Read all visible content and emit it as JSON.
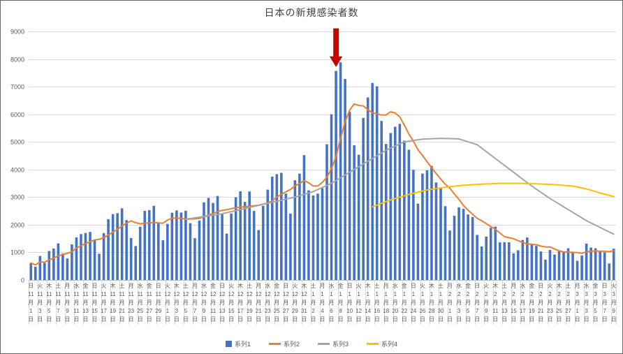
{
  "window": {
    "background": "#FFFFFF",
    "border_color": "#666666"
  },
  "chart_data": {
    "type": "combo-bar-line",
    "title": "日本の新規感染者数",
    "ylabel": "",
    "xlabel": "",
    "ylim": [
      0,
      9000
    ],
    "ytick_interval": 1000,
    "n_points": 129,
    "x_unit": "day",
    "x_tick_every": 2,
    "grid": true,
    "legend_position": "bottom",
    "axis_text_color": "#595959",
    "grid_color": "#D9D9D9",
    "axis_line_color": "#BFBFBF",
    "x_ticks": [
      "日 11月1日",
      "火 11月3日",
      "木 11月5日",
      "土 11月7日",
      "月 11月9日",
      "水 11月11日",
      "金 11月13日",
      "日 11月15日",
      "火 11月17日",
      "木 11月19日",
      "土 11月21日",
      "月 11月23日",
      "水 11月25日",
      "金 11月27日",
      "日 11月29日",
      "火 12月1日",
      "木 12月3日",
      "土 12月5日",
      "月 12月7日",
      "水 12月9日",
      "金 12月11日",
      "日 12月13日",
      "火 12月15日",
      "木 12月17日",
      "土 12月19日",
      "月 12月21日",
      "水 12月23日",
      "金 12月25日",
      "日 12月27日",
      "火 12月29日",
      "木 12月31日",
      "土 1月2日",
      "月 1月4日",
      "水 1月6日",
      "金 1月8日",
      "日 1月10日",
      "火 1月12日",
      "木 1月14日",
      "土 1月16日",
      "月 1月18日",
      "水 1月20日",
      "金 1月22日",
      "日 1月24日",
      "火 1月26日",
      "木 1月28日",
      "土 1月30日",
      "月 2月1日",
      "水 2月3日",
      "金 2月5日",
      "日 2月7日",
      "火 2月9日",
      "木 2月11日",
      "土 2月13日",
      "月 2月15日",
      "水 2月17日",
      "金 2月19日",
      "日 2月21日",
      "火 2月23日",
      "木 2月25日",
      "土 2月27日",
      "月 3月1日",
      "水 3月3日",
      "金 3月5日",
      "日 3月7日",
      "火 3月9日"
    ],
    "series": [
      {
        "name": "系列1",
        "type": "bar",
        "color": "#4472C4",
        "values": [
          614,
          482,
          867,
          620,
          1050,
          1141,
          1325,
          957,
          780,
          1287,
          1543,
          1661,
          1704,
          1738,
          1441,
          950,
          1699,
          2201,
          2386,
          2418,
          2596,
          2168,
          1520,
          1229,
          1930,
          2504,
          2531,
          2684,
          2066,
          1438,
          2030,
          2434,
          2518,
          2442,
          2508,
          2058,
          1515,
          2152,
          2810,
          2971,
          2790,
          3041,
          2387,
          1680,
          2410,
          2994,
          3211,
          2829,
          3205,
          2501,
          1806,
          2686,
          3271,
          3742,
          3832,
          3881,
          3127,
          2402,
          3610,
          3852,
          4520,
          3246,
          3059,
          3128,
          3325,
          4915,
          6001,
          7570,
          7882,
          7278,
          6093,
          4876,
          4534,
          5870,
          6610,
          7133,
          7014,
          5759,
          4925,
          5320,
          5549,
          5653,
          5045,
          4717,
          3989,
          2764,
          3853,
          3971,
          4133,
          3534,
          3344,
          2673,
          1792,
          2324,
          2631,
          2576,
          2372,
          2279,
          1632,
          1216,
          1570,
          1887,
          1933,
          1362,
          1371,
          1364,
          965,
          1076,
          1448,
          1538,
          1304,
          1234,
          1032,
          739,
          1087,
          922,
          1076,
          1029,
          1148,
          999,
          697,
          888,
          1316,
          1174,
          1149,
          1049,
          1001,
          599,
          1133
        ]
      },
      {
        "name": "系列2",
        "type": "line",
        "color": "#ED7D31",
        "width": 2,
        "values": [
          614,
          548,
          654,
          646,
          727,
          796,
          871,
          920,
          963,
          1023,
          1155,
          1242,
          1322,
          1381,
          1451,
          1475,
          1534,
          1628,
          1731,
          1833,
          1956,
          2060,
          2141,
          2074,
          2035,
          2052,
          2068,
          2081,
          2066,
          2055,
          2169,
          2241,
          2243,
          2230,
          2205,
          2204,
          2215,
          2232,
          2286,
          2351,
          2401,
          2477,
          2524,
          2547,
          2584,
          2610,
          2645,
          2650,
          2674,
          2690,
          2708,
          2747,
          2787,
          2863,
          3006,
          3103,
          3192,
          3277,
          3409,
          3492,
          3603,
          3520,
          3402,
          3402,
          3534,
          3721,
          4028,
          4463,
          5126,
          5728,
          6152,
          6374,
          6319,
          6300,
          6163,
          6056,
          6019,
          5971,
          5978,
          6090,
          6044,
          5908,
          5609,
          5281,
          5028,
          4720,
          4510,
          4285,
          4067,
          3852,
          3655,
          3467,
          3329,
          3110,
          2919,
          2696,
          2530,
          2378,
          2229,
          2147,
          2039,
          1933,
          1841,
          1697,
          1567,
          1529,
          1493,
          1423,
          1360,
          1303,
          1295,
          1276,
          1228,
          1196,
          1197,
          1122,
          1056,
          1017,
          1005,
          1000,
          994,
          966,
          1022,
          1036,
          1053,
          1039,
          1039,
          1025,
          1060
        ]
      },
      {
        "name": "系列3",
        "type": "line",
        "color": "#A5A5A5",
        "width": 2,
        "points": [
          [
            34,
            2200
          ],
          [
            38,
            2300
          ],
          [
            42,
            2400
          ],
          [
            46,
            2550
          ],
          [
            50,
            2700
          ],
          [
            54,
            2850
          ],
          [
            58,
            3000
          ],
          [
            62,
            3200
          ],
          [
            66,
            3500
          ],
          [
            70,
            3900
          ],
          [
            74,
            4300
          ],
          [
            78,
            4700
          ],
          [
            82,
            5000
          ],
          [
            86,
            5100
          ],
          [
            90,
            5130
          ],
          [
            94,
            5110
          ],
          [
            98,
            4900
          ],
          [
            102,
            4400
          ],
          [
            106,
            3900
          ],
          [
            110,
            3400
          ],
          [
            114,
            2950
          ],
          [
            118,
            2550
          ],
          [
            122,
            2150
          ],
          [
            126,
            1820
          ],
          [
            128,
            1660
          ]
        ]
      },
      {
        "name": "系列4",
        "type": "line",
        "color": "#FFC000",
        "width": 2,
        "points": [
          [
            75,
            2650
          ],
          [
            79,
            2900
          ],
          [
            83,
            3100
          ],
          [
            87,
            3260
          ],
          [
            91,
            3360
          ],
          [
            95,
            3430
          ],
          [
            99,
            3470
          ],
          [
            103,
            3500
          ],
          [
            107,
            3500
          ],
          [
            111,
            3480
          ],
          [
            115,
            3450
          ],
          [
            119,
            3400
          ],
          [
            122,
            3300
          ],
          [
            125,
            3150
          ],
          [
            128,
            3020
          ]
        ]
      }
    ],
    "annotation": {
      "shape": "down-arrow",
      "color": "#CC0000",
      "edge_color": "#8E1B1B",
      "x_index": 67,
      "y_tip": 7730,
      "y_top": 9100
    }
  }
}
